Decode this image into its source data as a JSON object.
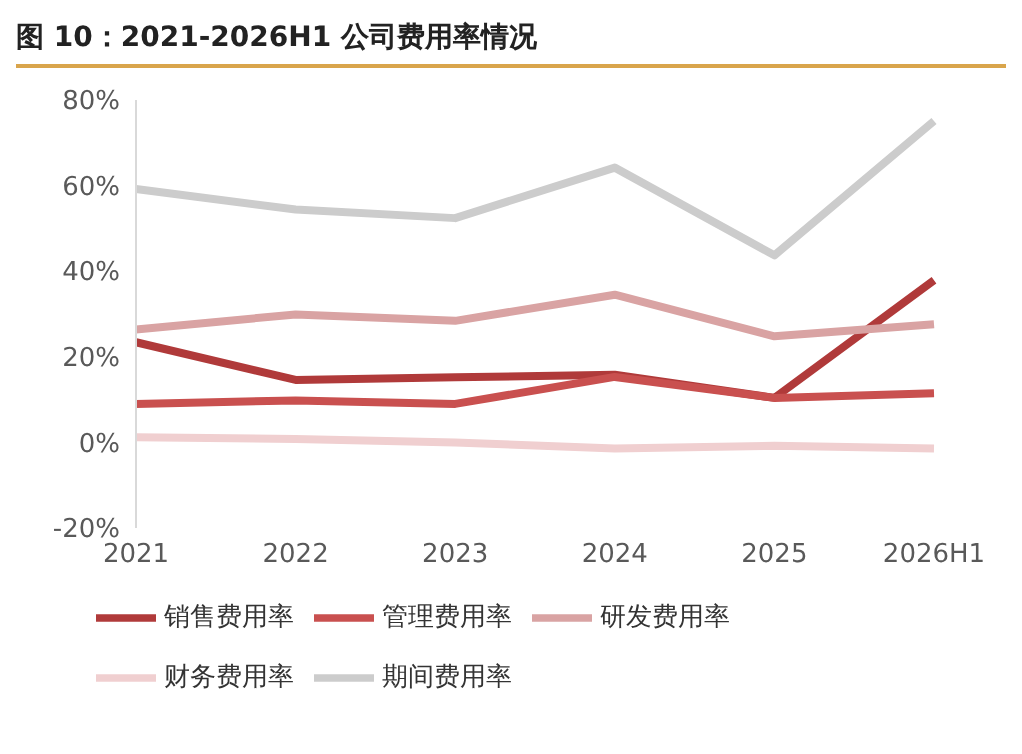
{
  "chart_data": {
    "type": "line",
    "title": "图 10：2021-2026H1 公司费用率情况",
    "categories": [
      "2021",
      "2022",
      "2023",
      "2024",
      "2025",
      "2026H1"
    ],
    "series": [
      {
        "name": "销售费用率",
        "color": "#b03a3a",
        "values": [
          23.4,
          14.6,
          15.2,
          15.8,
          10.4,
          37.9
        ]
      },
      {
        "name": "管理费用率",
        "color": "#c9504f",
        "values": [
          9.0,
          9.8,
          9.0,
          15.3,
          10.4,
          11.5
        ]
      },
      {
        "name": "研发费用率",
        "color": "#d9a3a3",
        "values": [
          26.4,
          29.9,
          28.4,
          34.5,
          24.8,
          27.6
        ]
      },
      {
        "name": "财务费用率",
        "color": "#f0cfd0",
        "values": [
          1.2,
          0.8,
          0,
          -1.4,
          -0.8,
          -1.4
        ]
      },
      {
        "name": "期间费用率",
        "color": "#cccccc",
        "values": [
          59.2,
          54.4,
          52.4,
          64.2,
          43.7,
          75.1
        ]
      }
    ],
    "ylim": [
      -20,
      80
    ],
    "yticks": [
      {
        "value": -20,
        "label": "-20%"
      },
      {
        "value": 0,
        "label": "0%"
      },
      {
        "value": 20,
        "label": "20%"
      },
      {
        "value": 40,
        "label": "40%"
      },
      {
        "value": 60,
        "label": "60%"
      },
      {
        "value": 80,
        "label": "80%"
      }
    ],
    "grid": false,
    "legend": "bottom",
    "marker": "none",
    "line_style": "solid"
  }
}
